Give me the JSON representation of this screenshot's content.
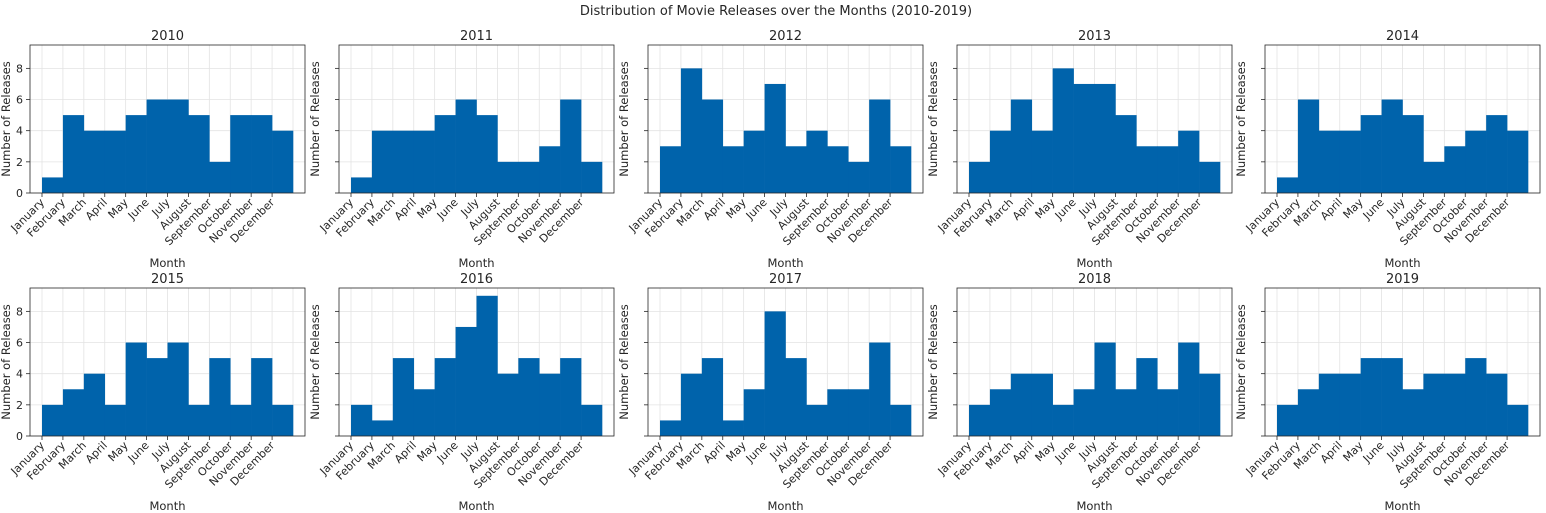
{
  "figure": {
    "title": "Distribution of Movie Releases over the Months (2010-2019)",
    "bar_color": "#0063ab"
  },
  "chart_data": [
    {
      "type": "bar",
      "title": "2010",
      "xlabel": "Month",
      "ylabel": "Number of Releases",
      "ylim": [
        0,
        9.5
      ],
      "yticks": [
        0,
        2,
        4,
        6,
        8
      ],
      "grid": true,
      "categories": [
        "January",
        "February",
        "March",
        "April",
        "May",
        "June",
        "July",
        "August",
        "September",
        "October",
        "November",
        "December"
      ],
      "values": [
        1,
        5,
        4,
        4,
        5,
        6,
        6,
        5,
        2,
        5,
        5,
        4
      ]
    },
    {
      "type": "bar",
      "title": "2011",
      "xlabel": "Month",
      "ylabel": "Number of Releases",
      "ylim": [
        0,
        9.5
      ],
      "yticks": [
        0,
        2,
        4,
        6,
        8
      ],
      "grid": true,
      "categories": [
        "January",
        "February",
        "March",
        "April",
        "May",
        "June",
        "July",
        "August",
        "September",
        "October",
        "November",
        "December"
      ],
      "values": [
        1,
        4,
        4,
        4,
        5,
        6,
        5,
        2,
        2,
        3,
        6,
        2
      ]
    },
    {
      "type": "bar",
      "title": "2012",
      "xlabel": "Month",
      "ylabel": "Number of Releases",
      "ylim": [
        0,
        9.5
      ],
      "yticks": [
        0,
        2,
        4,
        6,
        8
      ],
      "grid": true,
      "categories": [
        "January",
        "February",
        "March",
        "April",
        "May",
        "June",
        "July",
        "August",
        "September",
        "October",
        "November",
        "December"
      ],
      "values": [
        3,
        8,
        6,
        3,
        4,
        7,
        3,
        4,
        3,
        2,
        6,
        3
      ]
    },
    {
      "type": "bar",
      "title": "2013",
      "xlabel": "Month",
      "ylabel": "Number of Releases",
      "ylim": [
        0,
        9.5
      ],
      "yticks": [
        0,
        2,
        4,
        6,
        8
      ],
      "grid": true,
      "categories": [
        "January",
        "February",
        "March",
        "April",
        "May",
        "June",
        "July",
        "August",
        "September",
        "October",
        "November",
        "December"
      ],
      "values": [
        2,
        4,
        6,
        4,
        8,
        7,
        7,
        5,
        3,
        3,
        4,
        2
      ]
    },
    {
      "type": "bar",
      "title": "2014",
      "xlabel": "Month",
      "ylabel": "Number of Releases",
      "ylim": [
        0,
        9.5
      ],
      "yticks": [
        0,
        2,
        4,
        6,
        8
      ],
      "grid": true,
      "categories": [
        "January",
        "February",
        "March",
        "April",
        "May",
        "June",
        "July",
        "August",
        "September",
        "October",
        "November",
        "December"
      ],
      "values": [
        1,
        6,
        4,
        4,
        5,
        6,
        5,
        2,
        3,
        4,
        5,
        4
      ]
    },
    {
      "type": "bar",
      "title": "2015",
      "xlabel": "Month",
      "ylabel": "Number of Releases",
      "ylim": [
        0,
        9.5
      ],
      "yticks": [
        0,
        2,
        4,
        6,
        8
      ],
      "grid": true,
      "categories": [
        "January",
        "February",
        "March",
        "April",
        "May",
        "June",
        "July",
        "August",
        "September",
        "October",
        "November",
        "December"
      ],
      "values": [
        2,
        3,
        4,
        2,
        6,
        5,
        6,
        2,
        5,
        2,
        5,
        2
      ]
    },
    {
      "type": "bar",
      "title": "2016",
      "xlabel": "Month",
      "ylabel": "Number of Releases",
      "ylim": [
        0,
        9.5
      ],
      "yticks": [
        0,
        2,
        4,
        6,
        8
      ],
      "grid": true,
      "categories": [
        "January",
        "February",
        "March",
        "April",
        "May",
        "June",
        "July",
        "August",
        "September",
        "October",
        "November",
        "December"
      ],
      "values": [
        2,
        1,
        5,
        3,
        5,
        7,
        9,
        4,
        5,
        4,
        5,
        2
      ]
    },
    {
      "type": "bar",
      "title": "2017",
      "xlabel": "Month",
      "ylabel": "Number of Releases",
      "ylim": [
        0,
        9.5
      ],
      "yticks": [
        0,
        2,
        4,
        6,
        8
      ],
      "grid": true,
      "categories": [
        "January",
        "February",
        "March",
        "April",
        "May",
        "June",
        "July",
        "August",
        "September",
        "October",
        "November",
        "December"
      ],
      "values": [
        1,
        4,
        5,
        1,
        3,
        8,
        5,
        2,
        3,
        3,
        6,
        2
      ]
    },
    {
      "type": "bar",
      "title": "2018",
      "xlabel": "Month",
      "ylabel": "Number of Releases",
      "ylim": [
        0,
        9.5
      ],
      "yticks": [
        0,
        2,
        4,
        6,
        8
      ],
      "grid": true,
      "categories": [
        "January",
        "February",
        "March",
        "April",
        "May",
        "June",
        "July",
        "August",
        "September",
        "October",
        "November",
        "December"
      ],
      "values": [
        2,
        3,
        4,
        4,
        2,
        3,
        6,
        3,
        5,
        3,
        6,
        4
      ]
    },
    {
      "type": "bar",
      "title": "2019",
      "xlabel": "Month",
      "ylabel": "Number of Releases",
      "ylim": [
        0,
        9.5
      ],
      "yticks": [
        0,
        2,
        4,
        6,
        8
      ],
      "grid": true,
      "categories": [
        "January",
        "February",
        "March",
        "April",
        "May",
        "June",
        "July",
        "August",
        "September",
        "October",
        "November",
        "December"
      ],
      "values": [
        2,
        3,
        4,
        4,
        5,
        5,
        3,
        4,
        4,
        5,
        4,
        2
      ]
    }
  ]
}
